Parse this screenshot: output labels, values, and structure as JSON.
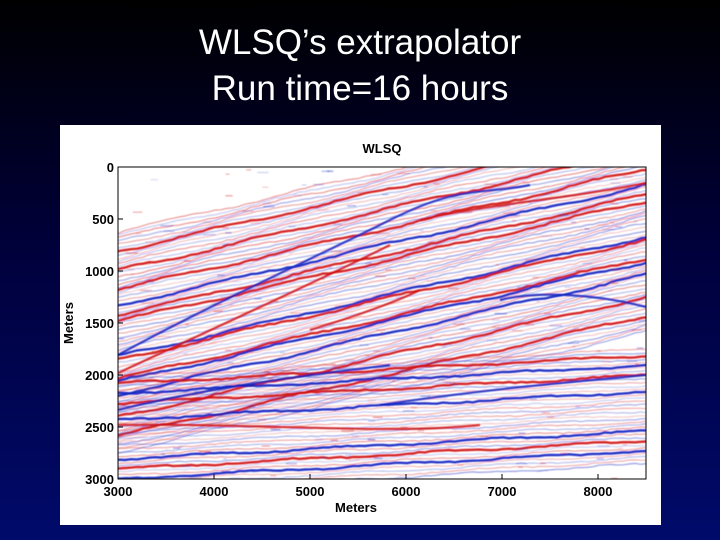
{
  "slide": {
    "title_line1": "WLSQ’s extrapolator",
    "title_line2": "Run time=16 hours"
  },
  "chart_data": {
    "type": "heatmap",
    "title": "WLSQ",
    "xlabel": "Meters",
    "ylabel": "Meters",
    "xlim": [
      3000,
      8500
    ],
    "ylim": [
      3000,
      0
    ],
    "y_axis_inverted": true,
    "x_ticks": [
      3000,
      4000,
      5000,
      6000,
      7000,
      8000
    ],
    "y_ticks": [
      0,
      500,
      1000,
      1500,
      2000,
      2500,
      3000
    ],
    "colormap": "red-white-blue (seismic amplitude)",
    "colors": {
      "positive": "#d01010",
      "negative": "#1020c0",
      "zero": "#ffffff"
    },
    "grid": false,
    "legend": "none"
  }
}
